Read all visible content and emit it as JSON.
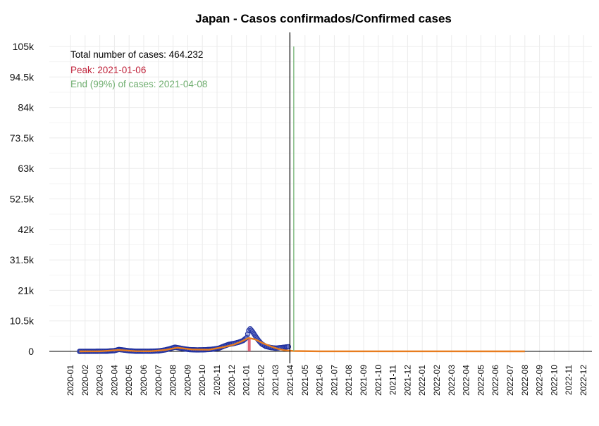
{
  "chart_data": {
    "type": "line",
    "title": "Japan - Casos confirmados/Confirmed cases",
    "xlabel": "",
    "ylabel": "",
    "ylim": [
      0,
      105000
    ],
    "y_ticks": [
      0,
      10500,
      21000,
      31500,
      42000,
      52500,
      63000,
      73500,
      84000,
      94500,
      105000
    ],
    "y_tick_labels": [
      "0",
      "10.5k",
      "21k",
      "31.5k",
      "42k",
      "52.5k",
      "63k",
      "73.5k",
      "84k",
      "94.5k",
      "105k"
    ],
    "x_tick_labels": [
      "2020-01",
      "2020-02",
      "2020-03",
      "2020-04",
      "2020-05",
      "2020-06",
      "2020-07",
      "2020-08",
      "2020-09",
      "2020-10",
      "2020-11",
      "2020-12",
      "2021-01",
      "2021-02",
      "2021-03",
      "2021-04",
      "2021-05",
      "2021-06",
      "2021-07",
      "2021-08",
      "2021-09",
      "2021-10",
      "2021-11",
      "2021-12",
      "2022-01",
      "2022-02",
      "2022-03",
      "2022-04",
      "2022-05",
      "2022-06",
      "2022-07",
      "2022-08",
      "2022-09",
      "2022-10",
      "2022-11",
      "2022-12"
    ],
    "grid": true,
    "annotations": {
      "total": "Total number of cases: 464.232",
      "peak": "Peak: 2021-01-06",
      "end": "End (99%) of cases: 2021-04-08"
    },
    "vlines": {
      "today": "2021-03-31",
      "end": "2021-04-08",
      "peak": "2021-01-06"
    },
    "observed": {
      "name": "",
      "color": "#1f2f9e",
      "points": [
        [
          "2020-01-20",
          0
        ],
        [
          "2020-02-01",
          10
        ],
        [
          "2020-02-15",
          15
        ],
        [
          "2020-03-01",
          40
        ],
        [
          "2020-03-15",
          50
        ],
        [
          "2020-04-01",
          250
        ],
        [
          "2020-04-10",
          650
        ],
        [
          "2020-04-20",
          450
        ],
        [
          "2020-05-01",
          200
        ],
        [
          "2020-05-15",
          50
        ],
        [
          "2020-06-01",
          40
        ],
        [
          "2020-06-15",
          60
        ],
        [
          "2020-07-01",
          150
        ],
        [
          "2020-07-15",
          500
        ],
        [
          "2020-07-25",
          900
        ],
        [
          "2020-08-05",
          1450
        ],
        [
          "2020-08-15",
          1150
        ],
        [
          "2020-08-25",
          850
        ],
        [
          "2020-09-05",
          600
        ],
        [
          "2020-09-20",
          500
        ],
        [
          "2020-10-05",
          550
        ],
        [
          "2020-10-20",
          700
        ],
        [
          "2020-11-05",
          1100
        ],
        [
          "2020-11-15",
          1800
        ],
        [
          "2020-11-25",
          2400
        ],
        [
          "2020-12-05",
          2700
        ],
        [
          "2020-12-15",
          3100
        ],
        [
          "2020-12-25",
          3700
        ],
        [
          "2021-01-02",
          4800
        ],
        [
          "2021-01-06",
          7200
        ],
        [
          "2021-01-09",
          7800
        ],
        [
          "2021-01-14",
          6800
        ],
        [
          "2021-01-20",
          5300
        ],
        [
          "2021-01-26",
          3900
        ],
        [
          "2021-02-02",
          2600
        ],
        [
          "2021-02-10",
          1700
        ],
        [
          "2021-02-20",
          1300
        ],
        [
          "2021-03-01",
          1100
        ],
        [
          "2021-03-10",
          1250
        ],
        [
          "2021-03-20",
          1450
        ],
        [
          "2021-03-28",
          1600
        ]
      ]
    },
    "fitted": {
      "name": "",
      "color": "#e87c1e",
      "points": [
        [
          "2020-01-20",
          0
        ],
        [
          "2020-03-01",
          30
        ],
        [
          "2020-04-10",
          450
        ],
        [
          "2020-05-15",
          80
        ],
        [
          "2020-06-15",
          50
        ],
        [
          "2020-07-15",
          450
        ],
        [
          "2020-08-10",
          1250
        ],
        [
          "2020-09-10",
          650
        ],
        [
          "2020-10-15",
          550
        ],
        [
          "2020-11-15",
          1500
        ],
        [
          "2020-12-05",
          2300
        ],
        [
          "2020-12-20",
          3300
        ],
        [
          "2021-01-06",
          4600
        ],
        [
          "2021-01-20",
          4100
        ],
        [
          "2021-02-05",
          2800
        ],
        [
          "2021-02-20",
          1700
        ],
        [
          "2021-03-05",
          900
        ],
        [
          "2021-03-20",
          400
        ],
        [
          "2021-04-08",
          120
        ],
        [
          "2021-06-01",
          20
        ],
        [
          "2022-08-01",
          0
        ]
      ]
    },
    "peak_band": {
      "color": "#d9546b",
      "from": "2021-01-04",
      "to": "2021-01-10",
      "value": 4600
    },
    "colors": {
      "today_line": "#000000",
      "end_line": "#7fb97f",
      "peak_text": "#c0233b",
      "end_text": "#6fae6f",
      "grid": "#ebebeb",
      "zero_line": "#000000"
    }
  }
}
